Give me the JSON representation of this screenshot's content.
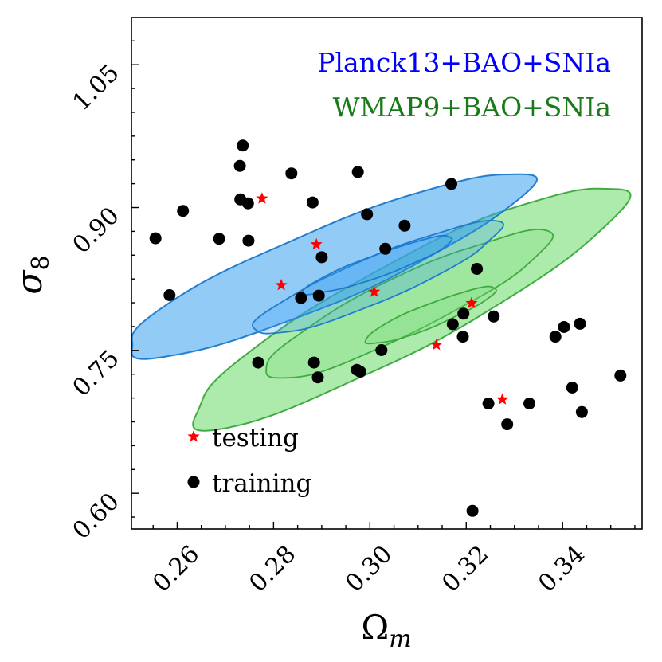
{
  "chart_data": {
    "type": "scatter",
    "title": "",
    "xlabel_symbol": "Ω",
    "xlabel_sub": "m",
    "ylabel_symbol": "σ",
    "ylabel_sub": "8",
    "xlim": [
      0.2505,
      0.3565
    ],
    "ylim": [
      0.5625,
      1.0995
    ],
    "xticks": [
      0.26,
      0.28,
      0.3,
      0.32,
      0.34
    ],
    "xtick_labels": [
      "0.26",
      "0.28",
      "0.30",
      "0.32",
      "0.34"
    ],
    "yticks": [
      0.6,
      0.75,
      0.9,
      1.05
    ],
    "ytick_labels": [
      "0.60",
      "0.75",
      "0.90",
      "1.05"
    ],
    "annotations": [
      {
        "text": "Planck13+BAO+SNIa",
        "color": "#0000ff"
      },
      {
        "text": "WMAP9+BAO+SNIa",
        "color": "#1a7a1a"
      }
    ],
    "contours": [
      {
        "name": "WMAP9+BAO+SNIa",
        "fill": "#7fe07f",
        "fill_opacity": 0.65,
        "stroke": "#3aa83a",
        "levels": [
          {
            "cx": 0.3077,
            "cy": 0.7968,
            "rx": 0.0506,
            "ry": 0.0471,
            "angle_deg": -28
          },
          {
            "cx": 0.3075,
            "cy": 0.798,
            "rx": 0.033,
            "ry": 0.03,
            "angle_deg": -26
          },
          {
            "cx": 0.3125,
            "cy": 0.7866,
            "rx": 0.0146,
            "ry": 0.012,
            "angle_deg": -22
          }
        ]
      },
      {
        "name": "Planck13+BAO+SNIa",
        "fill": "#3aa0f0",
        "fill_opacity": 0.55,
        "stroke": "#1a78cc",
        "levels": [
          {
            "cx": 0.2908,
            "cy": 0.8387,
            "rx": 0.0455,
            "ry": 0.0392,
            "angle_deg": -23
          },
          {
            "cx": 0.3015,
            "cy": 0.8253,
            "rx": 0.0279,
            "ry": 0.0237,
            "angle_deg": -23
          },
          {
            "cx": 0.3018,
            "cy": 0.8393,
            "rx": 0.0165,
            "ry": 0.0116,
            "angle_deg": -20
          }
        ]
      }
    ],
    "series": [
      {
        "name": "training",
        "marker": "circle",
        "color": "#000000",
        "points": [
          [
            0.2555,
            0.8677
          ],
          [
            0.2584,
            0.808
          ],
          [
            0.2612,
            0.8965
          ],
          [
            0.2687,
            0.8672
          ],
          [
            0.273,
            0.9437
          ],
          [
            0.2731,
            0.9085
          ],
          [
            0.2736,
            0.9651
          ],
          [
            0.2747,
            0.9044
          ],
          [
            0.2748,
            0.8652
          ],
          [
            0.2768,
            0.7372
          ],
          [
            0.2837,
            0.9358
          ],
          [
            0.2857,
            0.805
          ],
          [
            0.2881,
            0.9054
          ],
          [
            0.2884,
            0.7372
          ],
          [
            0.2892,
            0.7217
          ],
          [
            0.2894,
            0.8075
          ],
          [
            0.29,
            0.8478
          ],
          [
            0.2973,
            0.7296
          ],
          [
            0.2975,
            0.9373
          ],
          [
            0.298,
            0.7276
          ],
          [
            0.2994,
            0.893
          ],
          [
            0.3024,
            0.7503
          ],
          [
            0.3032,
            0.8567
          ],
          [
            0.3072,
            0.8809
          ],
          [
            0.3169,
            0.9248
          ],
          [
            0.3172,
            0.7775
          ],
          [
            0.3193,
            0.7644
          ],
          [
            0.3194,
            0.7885
          ],
          [
            0.3213,
            0.5815
          ],
          [
            0.3222,
            0.8356
          ],
          [
            0.3246,
            0.6942
          ],
          [
            0.3257,
            0.7856
          ],
          [
            0.3285,
            0.6724
          ],
          [
            0.3331,
            0.6942
          ],
          [
            0.3385,
            0.7644
          ],
          [
            0.3403,
            0.7745
          ],
          [
            0.342,
            0.711
          ],
          [
            0.3436,
            0.778
          ],
          [
            0.344,
            0.6852
          ],
          [
            0.352,
            0.7236
          ]
        ]
      },
      {
        "name": "testing",
        "marker": "star",
        "color": "#ff0000",
        "points": [
          [
            0.2776,
            0.9095
          ],
          [
            0.2816,
            0.8185
          ],
          [
            0.2889,
            0.8613
          ],
          [
            0.3009,
            0.8115
          ],
          [
            0.3138,
            0.7558
          ],
          [
            0.3211,
            0.7996
          ],
          [
            0.3275,
            0.6985
          ]
        ]
      }
    ],
    "legend": {
      "position": "lower-left",
      "entries": [
        {
          "label": "testing",
          "marker": "star",
          "color": "#ff0000"
        },
        {
          "label": "training",
          "marker": "circle",
          "color": "#000000"
        }
      ]
    }
  }
}
